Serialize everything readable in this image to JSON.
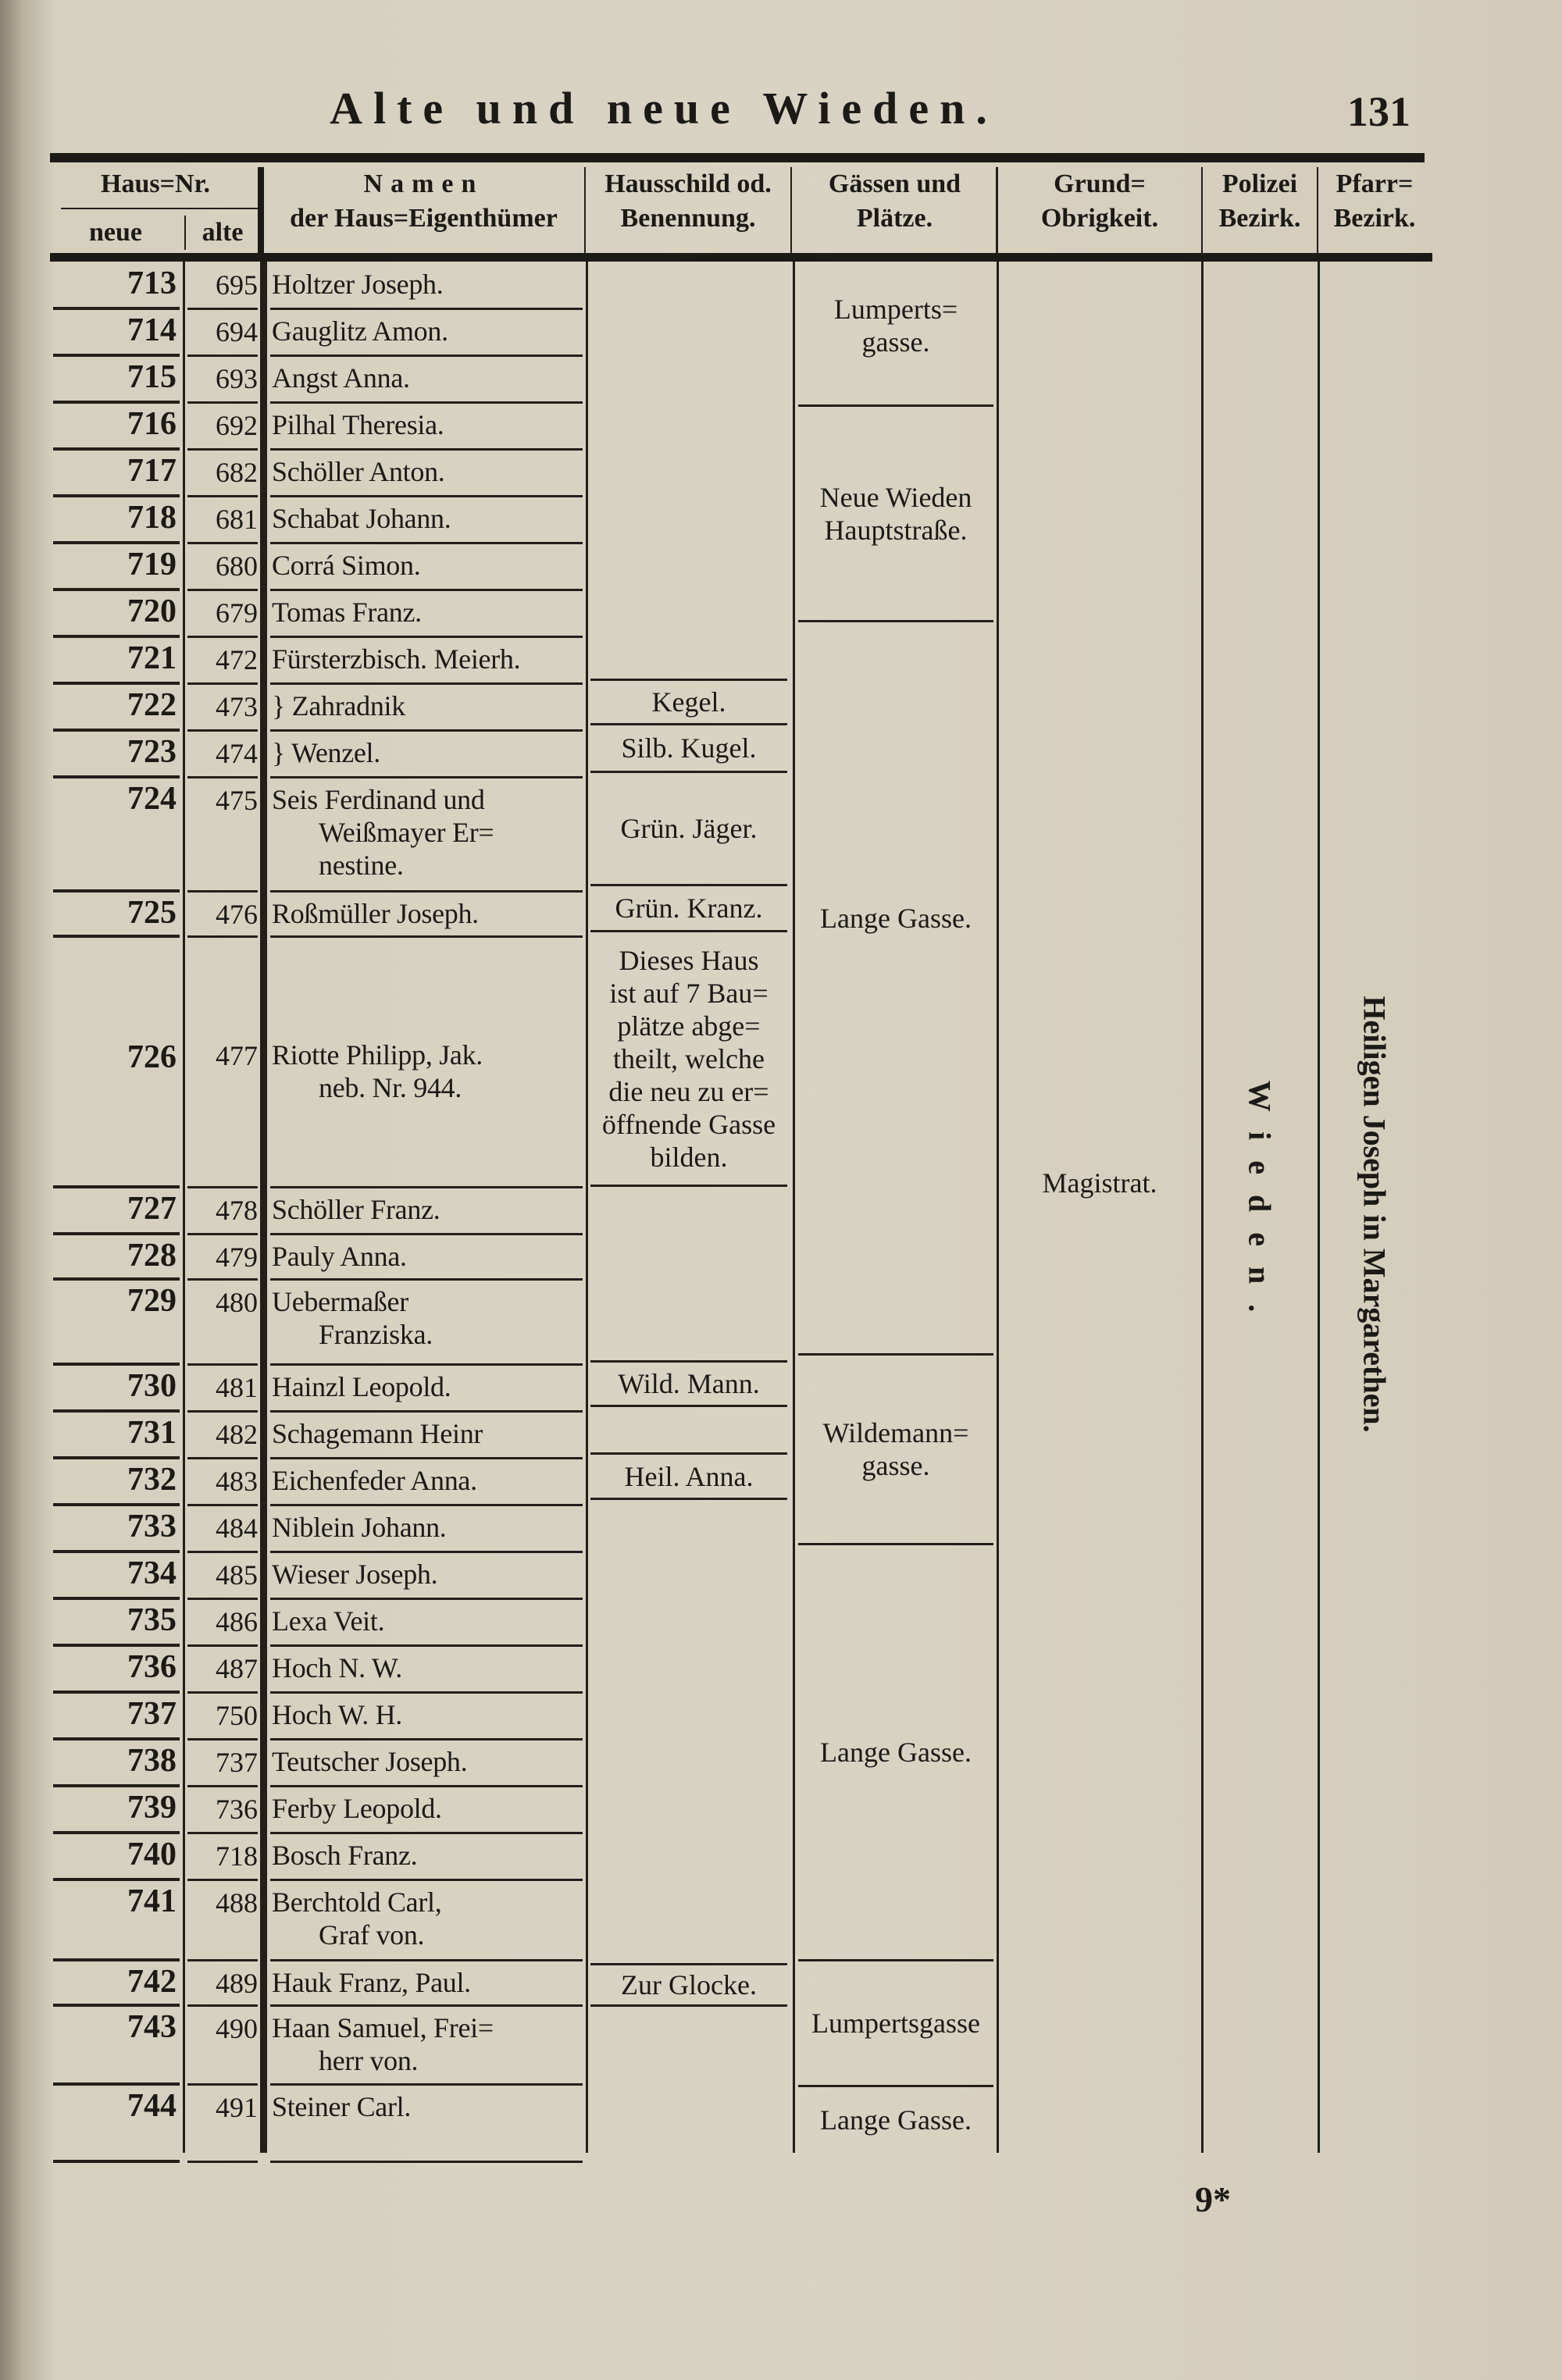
{
  "page": {
    "title": "Alte und neue Wieden.",
    "page_number": "131",
    "footer_signature": "9*"
  },
  "header": {
    "haus_nr": "Haus=Nr.",
    "neue": "neue",
    "alte": "alte",
    "namen_1": "Namen",
    "namen_2": "der Haus=Eigenthümer",
    "schild_1": "Hausschild od.",
    "schild_2": "Benennung.",
    "gassen_1": "Gässen und",
    "gassen_2": "Plätze.",
    "grund_1": "Grund=",
    "grund_2": "Obrigkeit.",
    "polizei_1": "Polizei",
    "polizei_2": "Bezirk.",
    "pfarr_1": "Pfarr=",
    "pfarr_2": "Bezirk."
  },
  "rows": [
    {
      "neue": "713",
      "alte": "695",
      "name": [
        "Holtzer Joseph."
      ]
    },
    {
      "neue": "714",
      "alte": "694",
      "name": [
        "Gauglitz Amon."
      ]
    },
    {
      "neue": "715",
      "alte": "693",
      "name": [
        "Angst Anna."
      ]
    },
    {
      "neue": "716",
      "alte": "692",
      "name": [
        "Pilhal Theresia."
      ]
    },
    {
      "neue": "717",
      "alte": "682",
      "name": [
        "Schöller Anton."
      ]
    },
    {
      "neue": "718",
      "alte": "681",
      "name": [
        "Schabat Johann."
      ]
    },
    {
      "neue": "719",
      "alte": "680",
      "name": [
        "Corrá Simon."
      ]
    },
    {
      "neue": "720",
      "alte": "679",
      "name": [
        "Tomas Franz."
      ]
    },
    {
      "neue": "721",
      "alte": "472",
      "name": [
        "Fürsterzbisch. Meierh."
      ]
    },
    {
      "neue": "722",
      "alte": "473",
      "name": [
        "} Zahradnik"
      ]
    },
    {
      "neue": "723",
      "alte": "474",
      "name": [
        "} Wenzel."
      ]
    },
    {
      "neue": "724",
      "alte": "475",
      "name": [
        "Seis Ferdinand und",
        "Weißmayer Er=",
        "nestine."
      ]
    },
    {
      "neue": "725",
      "alte": "476",
      "name": [
        "Roßmüller Joseph."
      ]
    },
    {
      "neue": "726",
      "alte": "477",
      "name": [
        "Riotte Philipp, Jak.",
        "neb. Nr. 944."
      ]
    },
    {
      "neue": "727",
      "alte": "478",
      "name": [
        "Schöller Franz."
      ]
    },
    {
      "neue": "728",
      "alte": "479",
      "name": [
        "Pauly Anna."
      ]
    },
    {
      "neue": "729",
      "alte": "480",
      "name": [
        "Uebermaßer",
        "Franziska."
      ]
    },
    {
      "neue": "730",
      "alte": "481",
      "name": [
        "Hainzl Leopold."
      ]
    },
    {
      "neue": "731",
      "alte": "482",
      "name": [
        "Schagemann Heinr"
      ]
    },
    {
      "neue": "732",
      "alte": "483",
      "name": [
        "Eichenfeder Anna."
      ]
    },
    {
      "neue": "733",
      "alte": "484",
      "name": [
        "Niblein Johann."
      ]
    },
    {
      "neue": "734",
      "alte": "485",
      "name": [
        "Wieser Joseph."
      ]
    },
    {
      "neue": "735",
      "alte": "486",
      "name": [
        "Lexa Veit."
      ]
    },
    {
      "neue": "736",
      "alte": "487",
      "name": [
        "Hoch N. W."
      ]
    },
    {
      "neue": "737",
      "alte": "750",
      "name": [
        "Hoch W. H."
      ]
    },
    {
      "neue": "738",
      "alte": "737",
      "name": [
        "Teutscher Joseph."
      ]
    },
    {
      "neue": "739",
      "alte": "736",
      "name": [
        "Ferby Leopold."
      ]
    },
    {
      "neue": "740",
      "alte": "718",
      "name": [
        "Bosch Franz."
      ]
    },
    {
      "neue": "741",
      "alte": "488",
      "name": [
        "Berchtold Carl,",
        "Graf von."
      ]
    },
    {
      "neue": "742",
      "alte": "489",
      "name": [
        "Hauk Franz, Paul."
      ]
    },
    {
      "neue": "743",
      "alte": "490",
      "name": [
        "Haan Samuel, Frei=",
        "herr von."
      ]
    },
    {
      "neue": "744",
      "alte": "491",
      "name": [
        "Steiner Carl."
      ]
    }
  ],
  "hausschild": {
    "kegel": "Kegel.",
    "silb_kugel": "Silb. Kugel.",
    "gruen_jaeger": "Grün. Jäger.",
    "gruen_kranz": "Grün. Kranz.",
    "note": [
      "Dieses Haus",
      "ist auf 7 Bau=",
      "plätze abge=",
      "theilt, welche",
      "die neu zu er=",
      "öffnende Gasse",
      "bilden."
    ],
    "wild_mann": "Wild. Mann.",
    "heil_anna": "Heil. Anna.",
    "zur_glocke": "Zur Glocke."
  },
  "gassen": {
    "lumperts_1": [
      "Lumperts=",
      "gasse."
    ],
    "neue_wieden": [
      "Neue Wieden",
      "Hauptstraße."
    ],
    "lange_1": "Lange Gasse.",
    "wildemann": [
      "Wildemann=",
      "gasse."
    ],
    "lange_2": "Lange Gasse.",
    "lumperts_2": "Lumpertsgasse",
    "lange_3": "Lange Gasse."
  },
  "grund_obrigkeit": "Magistrat.",
  "polizei_bezirk": "Wieden.",
  "pfarr_bezirk": "Heiligen Joseph in Margarethen."
}
